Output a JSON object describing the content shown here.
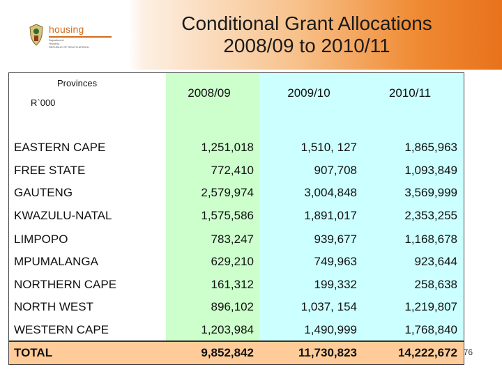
{
  "slide": {
    "title_line1": "Conditional Grant Allocations",
    "title_line2": "2008/09 to 2010/11",
    "page_number": "76",
    "accent_color": "#e8721c"
  },
  "logo": {
    "word": "housing",
    "sub1": "Department:",
    "sub2": "Housing",
    "sub3": "REPUBLIC OF SOUTH AFRICA"
  },
  "table": {
    "header_label": "Provinces",
    "header_unit": "R`000",
    "years": [
      "2008/09",
      "2009/10",
      "2010/11"
    ],
    "rows": [
      {
        "province": "EASTERN CAPE",
        "v1": "1,251,018",
        "v2": "1,510, 127",
        "v3": "1,865,963"
      },
      {
        "province": "FREE STATE",
        "v1": "772,410",
        "v2": "907,708",
        "v3": "1,093,849"
      },
      {
        "province": "GAUTENG",
        "v1": "2,579,974",
        "v2": "3,004,848",
        "v3": "3,569,999"
      },
      {
        "province": "KWAZULU-NATAL",
        "v1": "1,575,586",
        "v2": "1,891,017",
        "v3": "2,353,255"
      },
      {
        "province": "LIMPOPO",
        "v1": "783,247",
        "v2": "939,677",
        "v3": "1,168,678"
      },
      {
        "province": "MPUMALANGA",
        "v1": "629,210",
        "v2": "749,963",
        "v3": "923,644"
      },
      {
        "province": "NORTHERN CAPE",
        "v1": "161,312",
        "v2": "199,332",
        "v3": "258,638"
      },
      {
        "province": "NORTH WEST",
        "v1": "896,102",
        "v2": "1,037, 154",
        "v3": "1,219,807"
      },
      {
        "province": "WESTERN CAPE",
        "v1": "1,203,984",
        "v2": "1,490,999",
        "v3": "1,768,840"
      }
    ],
    "total": {
      "province": "TOTAL",
      "v1": "9,852,842",
      "v2": "11,730,823",
      "v3": "14,222,672"
    }
  }
}
